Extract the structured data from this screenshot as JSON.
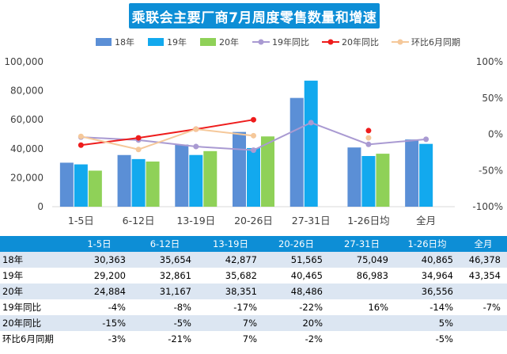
{
  "chart_data": {
    "type": "bar",
    "title": "乘联会主要厂商7月周度零售数量和增速",
    "categories": [
      "1-5日",
      "6-12日",
      "13-19日",
      "20-26日",
      "27-31日",
      "1-26日均",
      "全月"
    ],
    "ylim": [
      0,
      100000
    ],
    "y_ticks": [
      "0",
      "20,000",
      "40,000",
      "60,000",
      "80,000",
      "100,000"
    ],
    "y2lim": [
      -100,
      100
    ],
    "y2_ticks": [
      "-100%",
      "-50%",
      "0%",
      "50%",
      "100%"
    ],
    "bar_series": [
      {
        "name": "18年",
        "color": "#5b8fd6",
        "values": [
          30363,
          35654,
          42877,
          51565,
          75049,
          40865,
          46378
        ]
      },
      {
        "name": "19年",
        "color": "#12a9ee",
        "values": [
          29200,
          32861,
          35682,
          40465,
          86983,
          34964,
          43354
        ]
      },
      {
        "name": "20年",
        "color": "#8fd158",
        "values": [
          24884,
          31167,
          38351,
          48486,
          null,
          36556,
          null
        ]
      }
    ],
    "line_series": [
      {
        "name": "19年同比",
        "color": "#a99ad2",
        "values": [
          -4,
          -8,
          -17,
          -22,
          16,
          -14,
          -7
        ]
      },
      {
        "name": "20年同比",
        "color": "#ee1c1c",
        "values": [
          -15,
          -5,
          7,
          20,
          null,
          5,
          null
        ]
      },
      {
        "name": "环比6月同期",
        "color": "#f5c89a",
        "values": [
          -3,
          -21,
          7,
          -2,
          null,
          -5,
          null
        ]
      }
    ],
    "legend_position": "top",
    "grid": false
  },
  "table": {
    "header": [
      "1-5日",
      "6-12日",
      "13-19日",
      "20-26日",
      "27-31日",
      "1-26日均",
      "全月"
    ],
    "rows": [
      {
        "label": "18年",
        "cells": [
          "30,363",
          "35,654",
          "42,877",
          "51,565",
          "75,049",
          "40,865",
          "46,378"
        ]
      },
      {
        "label": "19年",
        "cells": [
          "29,200",
          "32,861",
          "35,682",
          "40,465",
          "86,983",
          "34,964",
          "43,354"
        ]
      },
      {
        "label": "20年",
        "cells": [
          "24,884",
          "31,167",
          "38,351",
          "48,486",
          "",
          "36,556",
          ""
        ]
      },
      {
        "label": "19年同比",
        "cells": [
          "-4%",
          "-8%",
          "-17%",
          "-22%",
          "16%",
          "-14%",
          "-7%"
        ]
      },
      {
        "label": "20年同比",
        "cells": [
          "-15%",
          "-5%",
          "7%",
          "20%",
          "",
          "5%",
          ""
        ]
      },
      {
        "label": "环比6月同期",
        "cells": [
          "-3%",
          "-21%",
          "7%",
          "-2%",
          "",
          "-5%",
          ""
        ]
      }
    ]
  }
}
